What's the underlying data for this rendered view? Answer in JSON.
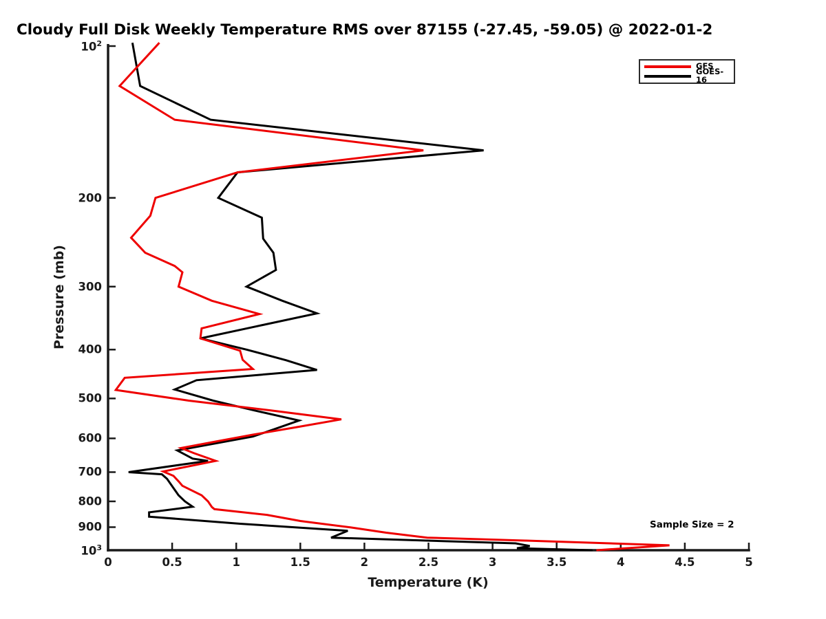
{
  "title": "Cloudy Full Disk Weekly Temperature RMS over 87155 (-27.45, -59.05) @ 2022-01-2",
  "annotation": "Sample Size = 2",
  "axes": {
    "x": {
      "label": "Temperature (K)",
      "min": 0,
      "max": 5,
      "ticks": [
        {
          "value": 0,
          "label": "0"
        },
        {
          "value": 0.5,
          "label": "0.5"
        },
        {
          "value": 1,
          "label": "1"
        },
        {
          "value": 1.5,
          "label": "1.5"
        },
        {
          "value": 2,
          "label": "2"
        },
        {
          "value": 2.5,
          "label": "2.5"
        },
        {
          "value": 3,
          "label": "3"
        },
        {
          "value": 3.5,
          "label": "3.5"
        },
        {
          "value": 4,
          "label": "4"
        },
        {
          "value": 4.5,
          "label": "4.5"
        },
        {
          "value": 5,
          "label": "5"
        }
      ]
    },
    "y": {
      "label": "Pressure (mb)",
      "scale": "log",
      "min": 100,
      "max": 1000,
      "ticks": [
        {
          "value": 100,
          "label": "10^2"
        },
        {
          "value": 200,
          "label": "200"
        },
        {
          "value": 300,
          "label": "300"
        },
        {
          "value": 400,
          "label": "400"
        },
        {
          "value": 500,
          "label": "500"
        },
        {
          "value": 600,
          "label": "600"
        },
        {
          "value": 700,
          "label": "700"
        },
        {
          "value": 800,
          "label": "800"
        },
        {
          "value": 900,
          "label": "900"
        },
        {
          "value": 1000,
          "label": "10^3"
        }
      ]
    }
  },
  "legend": [
    {
      "label": "GFS",
      "color": "#ee0000"
    },
    {
      "label": "GOES-16",
      "color": "#000000"
    }
  ],
  "colors": {
    "spine": "#1a1a1a",
    "background": "#ffffff"
  },
  "chart_data": {
    "type": "line",
    "title": "Cloudy Full Disk Weekly Temperature RMS over 87155 (-27.45, -59.05) @ 2022-01-2",
    "xlabel": "Temperature (K)",
    "ylabel": "Pressure (mb)",
    "xlim": [
      0,
      5
    ],
    "ylim": [
      100,
      1000
    ],
    "y_scale": "log",
    "grid": false,
    "legend_position": "upper right",
    "annotation": "Sample Size = 2",
    "series": [
      {
        "name": "GFS",
        "color": "#ee0000",
        "points_format": [
          "pressure_mb",
          "rms_K"
        ],
        "points": [
          [
            98.5,
            0.4
          ],
          [
            120,
            0.09
          ],
          [
            140,
            0.52
          ],
          [
            161,
            2.46
          ],
          [
            178,
            1.01
          ],
          [
            200,
            0.37
          ],
          [
            217,
            0.33
          ],
          [
            240,
            0.18
          ],
          [
            257,
            0.29
          ],
          [
            273,
            0.52
          ],
          [
            281,
            0.58
          ],
          [
            300,
            0.55
          ],
          [
            320,
            0.81
          ],
          [
            340,
            1.18
          ],
          [
            363,
            0.73
          ],
          [
            380,
            0.72
          ],
          [
            402,
            1.03
          ],
          [
            419,
            1.05
          ],
          [
            437,
            1.13
          ],
          [
            455,
            0.13
          ],
          [
            481,
            0.06
          ],
          [
            505,
            0.63
          ],
          [
            528,
            1.27
          ],
          [
            550,
            1.82
          ],
          [
            570,
            1.47
          ],
          [
            590,
            1.13
          ],
          [
            608,
            0.85
          ],
          [
            627,
            0.57
          ],
          [
            642,
            0.67
          ],
          [
            665,
            0.84
          ],
          [
            698,
            0.43
          ],
          [
            712,
            0.51
          ],
          [
            730,
            0.55
          ],
          [
            745,
            0.58
          ],
          [
            778,
            0.73
          ],
          [
            800,
            0.78
          ],
          [
            821,
            0.81
          ],
          [
            829,
            0.83
          ],
          [
            851,
            1.24
          ],
          [
            875,
            1.5
          ],
          [
            901,
            1.89
          ],
          [
            923,
            2.17
          ],
          [
            944,
            2.49
          ],
          [
            957,
            3.26
          ],
          [
            978,
            4.38
          ],
          [
            1000,
            3.81
          ]
        ]
      },
      {
        "name": "GOES-16",
        "color": "#000000",
        "points_format": [
          "pressure_mb",
          "rms_K"
        ],
        "points": [
          [
            98.5,
            0.19
          ],
          [
            120,
            0.25
          ],
          [
            140,
            0.8
          ],
          [
            161,
            2.93
          ],
          [
            178,
            1.01
          ],
          [
            200,
            0.86
          ],
          [
            219,
            1.2
          ],
          [
            241,
            1.21
          ],
          [
            257,
            1.29
          ],
          [
            278,
            1.31
          ],
          [
            300,
            1.08
          ],
          [
            320,
            1.36
          ],
          [
            339,
            1.63
          ],
          [
            360,
            1.15
          ],
          [
            380,
            0.72
          ],
          [
            400,
            1.08
          ],
          [
            420,
            1.39
          ],
          [
            439,
            1.63
          ],
          [
            460,
            0.69
          ],
          [
            480,
            0.52
          ],
          [
            505,
            0.82
          ],
          [
            528,
            1.14
          ],
          [
            553,
            1.49
          ],
          [
            575,
            1.3
          ],
          [
            595,
            1.13
          ],
          [
            634,
            0.54
          ],
          [
            658,
            0.66
          ],
          [
            665,
            0.78
          ],
          [
            700,
            0.16
          ],
          [
            707,
            0.42
          ],
          [
            722,
            0.46
          ],
          [
            778,
            0.55
          ],
          [
            800,
            0.6
          ],
          [
            820,
            0.66
          ],
          [
            841,
            0.32
          ],
          [
            858,
            0.32
          ],
          [
            886,
            1.03
          ],
          [
            915,
            1.87
          ],
          [
            944,
            1.74
          ],
          [
            969,
            3.18
          ],
          [
            981,
            3.29
          ],
          [
            991,
            3.19
          ],
          [
            1000,
            3.78
          ]
        ]
      }
    ]
  }
}
